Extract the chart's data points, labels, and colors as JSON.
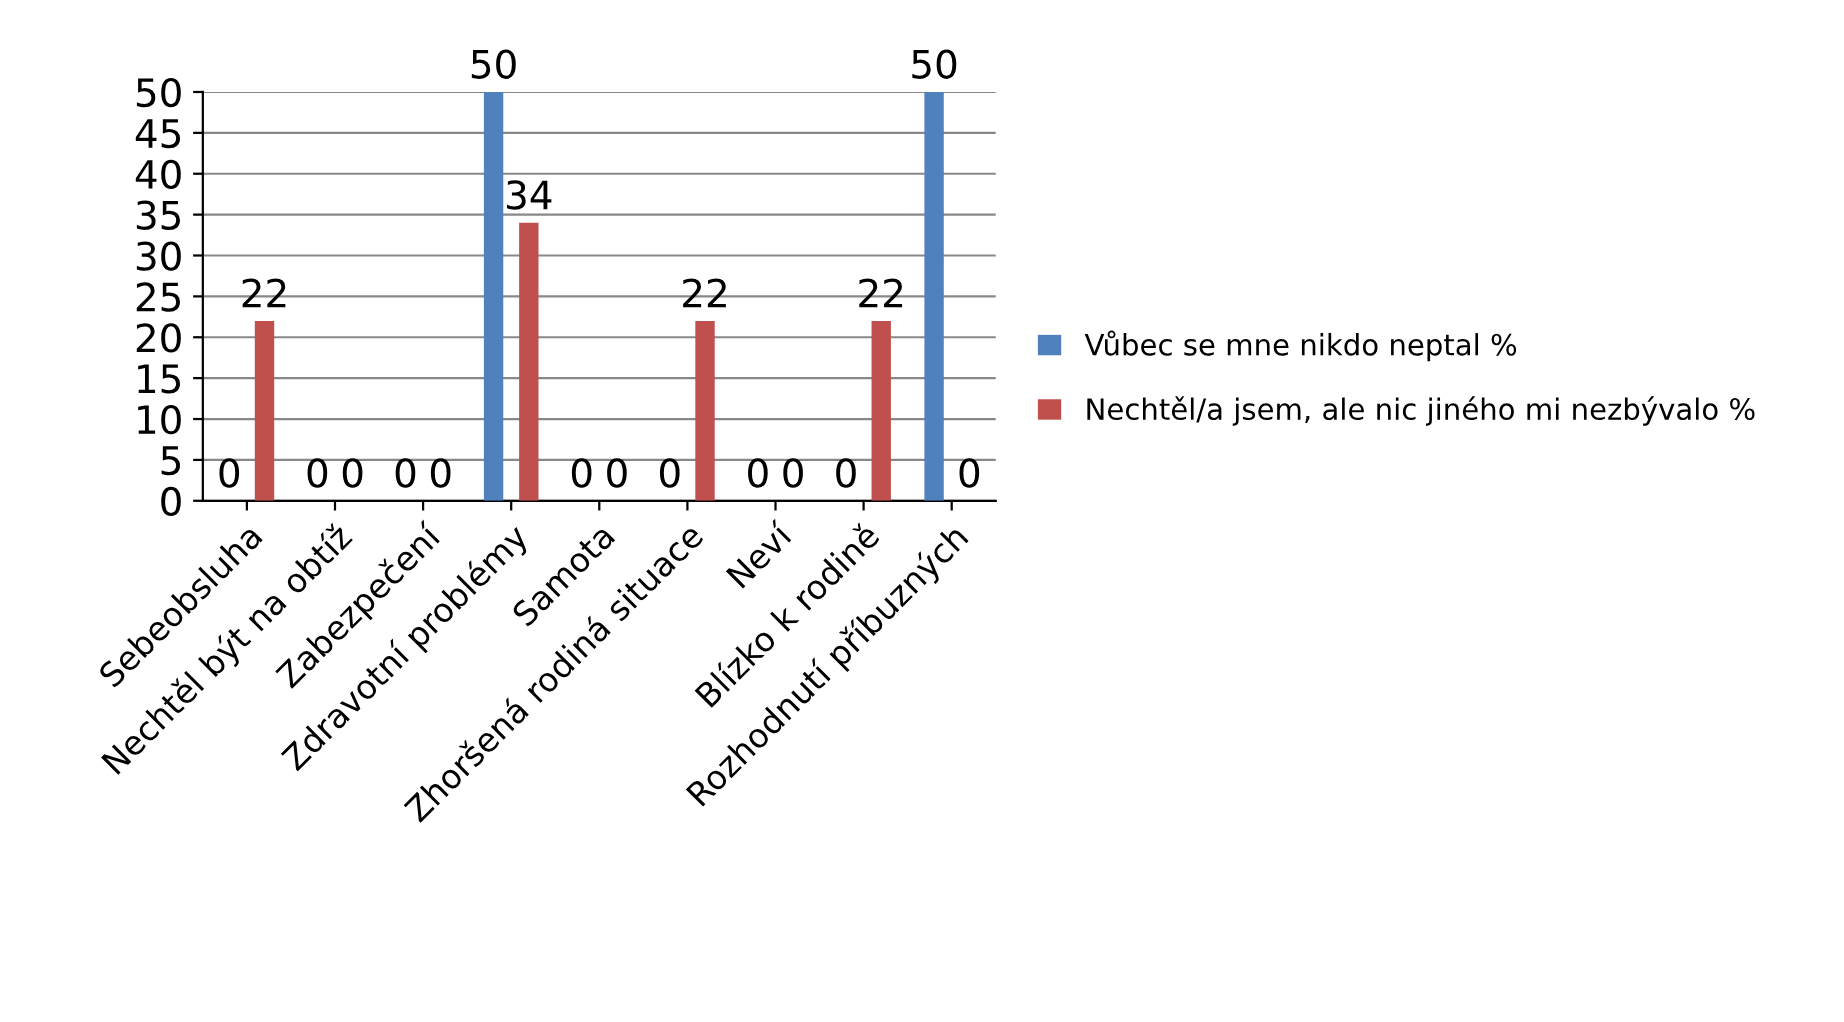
{
  "chart_data": {
    "type": "bar",
    "categories": [
      "Sebeobsluha",
      "Nechtěl být na obtíž",
      "Zabezpečení",
      "Zdravotní problémy",
      "Samota",
      "Zhoršená rodiná situace",
      "Neví",
      "Blízko k rodině",
      "Rozhodnutí příbuzných"
    ],
    "series": [
      {
        "name": "Vůbec se mne nikdo neptal %",
        "color": "#4f81bd",
        "values": [
          0,
          0,
          0,
          50,
          0,
          0,
          0,
          0,
          50
        ]
      },
      {
        "name": "Nechtěl/a jsem, ale nic jiného mi nezbývalo %",
        "color": "#c0504d",
        "values": [
          22,
          0,
          0,
          34,
          0,
          22,
          0,
          22,
          0
        ]
      }
    ],
    "ylim": [
      0,
      50
    ],
    "yticks": [
      0,
      5,
      10,
      15,
      20,
      25,
      30,
      35,
      40,
      45,
      50
    ],
    "grid": "y",
    "legend": "right",
    "data_labels": true
  }
}
